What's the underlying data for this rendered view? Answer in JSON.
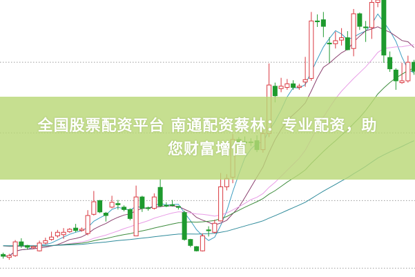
{
  "banner": {
    "line1": "全国股票配资平台 南通配资蔡林：专业配资，助",
    "line2": "您财富增值",
    "color": "#bad878"
  },
  "chart_data": {
    "type": "candlestick",
    "title": "",
    "xlabel": "",
    "ylabel": "",
    "ylim": [
      0,
      45
    ],
    "grid": true,
    "colors": {
      "up": "#d9363e",
      "down": "#1e9a2e",
      "grid": "#999999",
      "ma": [
        "#3a9cc0",
        "#8a3f6e",
        "#e89be6",
        "#3d8c3d",
        "#2d8a9a"
      ]
    },
    "moving_averages": [
      5,
      10,
      20,
      30,
      60
    ],
    "candles_ochl_order": "open, close, high, low",
    "candles": [
      [
        2.5,
        2.2,
        2.8,
        1.8
      ],
      [
        2.0,
        2.3,
        2.6,
        1.6
      ],
      [
        2.3,
        4.6,
        4.9,
        2.1
      ],
      [
        4.6,
        4.0,
        5.2,
        3.6
      ],
      [
        4.0,
        3.7,
        4.1,
        3.3
      ],
      [
        3.6,
        3.8,
        4.0,
        3.4
      ],
      [
        3.1,
        4.4,
        4.8,
        3.0
      ],
      [
        4.4,
        4.8,
        5.3,
        4.2
      ],
      [
        5.0,
        5.4,
        6.3,
        4.8
      ],
      [
        5.6,
        6.2,
        6.6,
        5.3
      ],
      [
        5.8,
        6.2,
        6.9,
        5.1
      ],
      [
        6.3,
        6.7,
        6.9,
        6.1
      ],
      [
        6.9,
        6.5,
        7.6,
        6.2
      ],
      [
        6.5,
        6.7,
        7.0,
        6.3
      ],
      [
        6.0,
        9.0,
        9.9,
        5.7
      ],
      [
        9.2,
        11.3,
        13.1,
        9.0
      ],
      [
        11.5,
        9.6,
        11.6,
        9.4
      ],
      [
        9.4,
        9.0,
        9.6,
        8.0
      ],
      [
        10.4,
        11.2,
        12.3,
        10.2
      ],
      [
        11.0,
        10.8,
        11.6,
        10.0
      ],
      [
        10.4,
        10.0,
        10.7,
        9.7
      ],
      [
        10.0,
        8.5,
        10.2,
        8.2
      ],
      [
        5.6,
        12.1,
        14.0,
        5.6
      ],
      [
        12.1,
        10.2,
        12.3,
        9.6
      ],
      [
        10.3,
        10.2,
        10.5,
        9.8
      ],
      [
        10.2,
        12.1,
        12.7,
        10.0
      ],
      [
        13.7,
        10.6,
        15.1,
        10.4
      ],
      [
        10.7,
        10.6,
        11.2,
        10.4
      ],
      [
        10.8,
        10.7,
        11.6,
        10.5
      ],
      [
        10.5,
        10.4,
        10.6,
        10.0
      ],
      [
        9.5,
        5.0,
        9.8,
        4.8
      ],
      [
        5.0,
        4.0,
        5.1,
        3.7
      ],
      [
        3.8,
        3.1,
        3.9,
        3.0
      ],
      [
        3.1,
        5.6,
        6.0,
        3.0
      ],
      [
        6.6,
        6.5,
        7.2,
        5.5
      ],
      [
        6.2,
        7.7,
        8.3,
        6.0
      ],
      [
        8.1,
        13.8,
        16.1,
        8.0
      ],
      [
        13.8,
        15.2,
        15.9,
        13.2
      ],
      [
        15.4,
        21.7,
        22.6,
        14.4
      ],
      [
        21.7,
        21.2,
        22.1,
        20.8
      ],
      [
        21.3,
        21.2,
        22.2,
        20.5
      ],
      [
        21.3,
        21.2,
        21.9,
        20.6
      ],
      [
        21.5,
        20.0,
        22.4,
        19.6
      ],
      [
        20.0,
        22.7,
        23.2,
        19.5
      ],
      [
        22.7,
        30.8,
        34.4,
        22.1
      ],
      [
        30.6,
        29.0,
        31.2,
        27.9
      ],
      [
        30.2,
        30.6,
        32.0,
        29.6
      ],
      [
        30.4,
        31.0,
        31.8,
        30.0
      ],
      [
        31.0,
        30.4,
        31.6,
        30.0
      ],
      [
        30.4,
        30.6,
        31.0,
        30.0
      ],
      [
        31.3,
        31.7,
        35.5,
        30.5
      ],
      [
        31.9,
        41.5,
        43.0,
        31.5
      ],
      [
        41.5,
        41.4,
        42.6,
        40.5
      ],
      [
        41.7,
        40.6,
        43.0,
        38.8
      ],
      [
        37.8,
        37.7,
        38.8,
        34.5
      ],
      [
        37.7,
        38.2,
        39.7,
        36.9
      ],
      [
        38.3,
        38.7,
        40.3,
        37.4
      ],
      [
        38.7,
        36.7,
        39.8,
        36.6
      ],
      [
        36.9,
        42.7,
        43.5,
        35.6
      ],
      [
        42.7,
        40.6,
        42.9,
        40.0
      ],
      [
        40.5,
        40.4,
        41.5,
        38.0
      ],
      [
        40.4,
        44.6,
        45.5,
        38.5
      ],
      [
        44.6,
        45.0,
        45.5,
        43.8
      ],
      [
        45.0,
        35.8,
        45.5,
        34.5
      ],
      [
        35.4,
        33.5,
        36.4,
        33.0
      ],
      [
        33.3,
        31.5,
        33.6,
        30.0
      ],
      [
        31.2,
        31.5,
        34.5,
        31.0
      ],
      [
        31.5,
        34.6,
        35.7,
        31.2
      ],
      [
        34.6,
        33.1,
        35.0,
        32.5
      ]
    ]
  }
}
